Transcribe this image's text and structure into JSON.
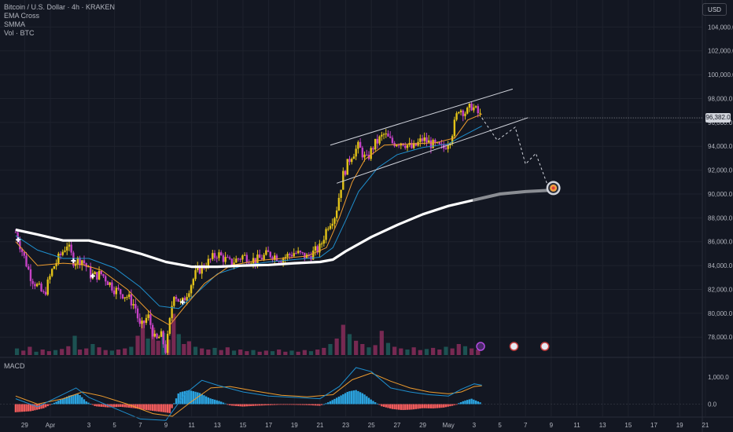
{
  "legend": {
    "symbol": "Bitcoin / U.S. Dollar · 4h · KRAKEN",
    "indicators": [
      "EMA Cross",
      "SMMA",
      "Vol · BTC"
    ]
  },
  "currency_button": "USD",
  "macd": {
    "label": "MACD",
    "ticks": [
      "1,000.0",
      "0.0"
    ],
    "tick_values": [
      1000,
      0
    ]
  },
  "colors": {
    "background": "#131722",
    "up": "#e3c318",
    "down": "#c542c5",
    "ema_fast": "#ef9c2e",
    "ema_slow": "#1f8fce",
    "smma": "#ffffff",
    "hist_pos": "#2ba3df",
    "hist_neg": "#f05b5b",
    "volume_down": "#8a2d5a",
    "volume_up": "#1f5d5a"
  },
  "chart_data": {
    "type": "candlestick",
    "y_range": [
      76500,
      106000
    ],
    "y_ticks": [
      104000,
      102000,
      100000,
      98000,
      96000,
      94000,
      92000,
      90000,
      88000,
      86000,
      84000,
      82000,
      80000,
      78000
    ],
    "y_tick_labels": [
      "104,000.0",
      "102,000.0",
      "100,000.0",
      "98,000.0",
      "96,000.0",
      "94,000.0",
      "92,000.0",
      "90,000.0",
      "88,000.0",
      "86,000.0",
      "84,000.0",
      "82,000.0",
      "80,000.0",
      "78,000.0"
    ],
    "x_ticks": [
      "29",
      "Apr",
      "3",
      "5",
      "7",
      "9",
      "11",
      "13",
      "15",
      "17",
      "19",
      "21",
      "23",
      "25",
      "27",
      "29",
      "May",
      "3",
      "5",
      "7",
      "9",
      "11",
      "13",
      "15",
      "17",
      "19",
      "21"
    ],
    "x_tick_days": [
      -3,
      -1,
      2,
      4,
      6,
      8,
      10,
      12,
      14,
      16,
      18,
      20,
      22,
      24,
      26,
      28,
      30,
      32,
      34,
      36,
      38,
      40,
      42,
      44,
      46,
      48,
      50
    ],
    "last_price": 96382.0,
    "last_price_label": "96,382.0",
    "price_path": [
      [
        -3.7,
        86800
      ],
      [
        -2.5,
        83000
      ],
      [
        -1.5,
        81500
      ],
      [
        -0.8,
        83800
      ],
      [
        0.3,
        85800
      ],
      [
        0.8,
        84400
      ],
      [
        1.5,
        84500
      ],
      [
        2.2,
        83100
      ],
      [
        3.0,
        83300
      ],
      [
        4.0,
        82000
      ],
      [
        5.0,
        81400
      ],
      [
        5.6,
        80600
      ],
      [
        6.0,
        78700
      ],
      [
        6.6,
        79800
      ],
      [
        7.2,
        77600
      ],
      [
        7.6,
        78200
      ],
      [
        8.0,
        76800
      ],
      [
        8.6,
        81800
      ],
      [
        9.2,
        80700
      ],
      [
        9.8,
        82100
      ],
      [
        10.4,
        83500
      ],
      [
        11.0,
        84000
      ],
      [
        12.0,
        85000
      ],
      [
        13.0,
        84200
      ],
      [
        14.0,
        84800
      ],
      [
        15.0,
        84400
      ],
      [
        16.0,
        85000
      ],
      [
        17.0,
        84600
      ],
      [
        18.0,
        85100
      ],
      [
        19.0,
        84700
      ],
      [
        20.0,
        85500
      ],
      [
        20.6,
        87400
      ],
      [
        21.2,
        88300
      ],
      [
        21.8,
        91600
      ],
      [
        22.4,
        93200
      ],
      [
        23.0,
        94000
      ],
      [
        23.6,
        92800
      ],
      [
        24.2,
        94100
      ],
      [
        25.0,
        95000
      ],
      [
        25.6,
        94300
      ],
      [
        26.4,
        94400
      ],
      [
        27.2,
        93800
      ],
      [
        28.0,
        94600
      ],
      [
        28.8,
        94100
      ],
      [
        29.6,
        93800
      ],
      [
        30.2,
        94800
      ],
      [
        30.8,
        97200
      ],
      [
        31.4,
        96800
      ],
      [
        31.8,
        97400
      ],
      [
        32.2,
        96900
      ],
      [
        32.6,
        96382
      ]
    ],
    "smma": [
      [
        -3.7,
        87000
      ],
      [
        -2.0,
        86600
      ],
      [
        0.0,
        86100
      ],
      [
        2.0,
        86100
      ],
      [
        4.0,
        85600
      ],
      [
        6.0,
        85000
      ],
      [
        8.0,
        84300
      ],
      [
        10.0,
        83900
      ],
      [
        12.0,
        83900
      ],
      [
        14.0,
        84000
      ],
      [
        16.0,
        84050
      ],
      [
        18.0,
        84200
      ],
      [
        20.0,
        84300
      ],
      [
        21.0,
        84500
      ],
      [
        22.0,
        85200
      ],
      [
        24.0,
        86400
      ],
      [
        26.0,
        87400
      ],
      [
        28.0,
        88300
      ],
      [
        30.0,
        89000
      ],
      [
        32.0,
        89500
      ]
    ],
    "smma_projection": [
      [
        32.0,
        89500
      ],
      [
        34.0,
        90000
      ],
      [
        36.0,
        90200
      ],
      [
        37.8,
        90300
      ]
    ],
    "ema_fast": [
      [
        -3.7,
        86000
      ],
      [
        -2.0,
        84000
      ],
      [
        0.0,
        84200
      ],
      [
        1.5,
        84100
      ],
      [
        3.0,
        83600
      ],
      [
        5.0,
        82000
      ],
      [
        7.0,
        79800
      ],
      [
        8.3,
        79000
      ],
      [
        9.5,
        80600
      ],
      [
        11.0,
        82500
      ],
      [
        13.0,
        84000
      ],
      [
        15.0,
        84400
      ],
      [
        17.0,
        84600
      ],
      [
        19.0,
        84800
      ],
      [
        20.5,
        85500
      ],
      [
        21.5,
        88000
      ],
      [
        22.5,
        91000
      ],
      [
        23.5,
        92900
      ],
      [
        25.0,
        94100
      ],
      [
        27.0,
        94200
      ],
      [
        29.0,
        94300
      ],
      [
        30.5,
        94700
      ],
      [
        31.5,
        96200
      ],
      [
        32.6,
        96700
      ]
    ],
    "ema_slow": [
      [
        -3.7,
        86500
      ],
      [
        -2.0,
        85300
      ],
      [
        0.0,
        84600
      ],
      [
        2.0,
        84600
      ],
      [
        4.0,
        83800
      ],
      [
        6.0,
        82200
      ],
      [
        7.5,
        80600
      ],
      [
        9.0,
        80400
      ],
      [
        10.5,
        81800
      ],
      [
        12.0,
        83300
      ],
      [
        14.0,
        84000
      ],
      [
        16.0,
        84300
      ],
      [
        18.0,
        84500
      ],
      [
        20.0,
        84700
      ],
      [
        21.0,
        85500
      ],
      [
        22.0,
        87800
      ],
      [
        23.0,
        90200
      ],
      [
        24.5,
        92200
      ],
      [
        26.0,
        93300
      ],
      [
        28.0,
        93900
      ],
      [
        30.0,
        94200
      ],
      [
        31.0,
        94800
      ],
      [
        32.6,
        95700
      ]
    ],
    "channel": {
      "upper": [
        [
          20.8,
          94100
        ],
        [
          35.0,
          98800
        ]
      ],
      "lower": [
        [
          21.3,
          90900
        ],
        [
          36.2,
          96400
        ]
      ]
    },
    "projection_path": [
      [
        32.6,
        96382
      ],
      [
        33.8,
        94500
      ],
      [
        35.2,
        95600
      ],
      [
        36.0,
        92500
      ],
      [
        36.8,
        93400
      ],
      [
        37.8,
        90500
      ]
    ],
    "target_price": 90500,
    "signal_days": [
      -3.5,
      0.8,
      2.3,
      9.3
    ],
    "event_days": [
      32.5,
      35.1,
      37.5
    ],
    "macd_hist": [
      [
        -3.7,
        -300
      ],
      [
        -2.5,
        -260
      ],
      [
        -1.5,
        -150
      ],
      [
        -0.5,
        100
      ],
      [
        0.5,
        320
      ],
      [
        1.2,
        380
      ],
      [
        1.8,
        100
      ],
      [
        2.5,
        -80
      ],
      [
        3.5,
        -120
      ],
      [
        4.5,
        -100
      ],
      [
        5.5,
        -150
      ],
      [
        6.5,
        -220
      ],
      [
        7.5,
        -280
      ],
      [
        8.3,
        -330
      ],
      [
        9.0,
        430
      ],
      [
        9.8,
        520
      ],
      [
        10.6,
        420
      ],
      [
        11.4,
        220
      ],
      [
        12.2,
        110
      ],
      [
        13.0,
        -50
      ],
      [
        14.0,
        -90
      ],
      [
        15.0,
        -60
      ],
      [
        16.0,
        -40
      ],
      [
        17.0,
        -20
      ],
      [
        18.0,
        -25
      ],
      [
        19.0,
        -35
      ],
      [
        20.0,
        -60
      ],
      [
        20.6,
        60
      ],
      [
        21.4,
        260
      ],
      [
        22.2,
        470
      ],
      [
        22.8,
        520
      ],
      [
        23.4,
        380
      ],
      [
        24.0,
        160
      ],
      [
        24.8,
        -80
      ],
      [
        25.6,
        -180
      ],
      [
        26.4,
        -220
      ],
      [
        27.2,
        -200
      ],
      [
        28.0,
        -150
      ],
      [
        28.8,
        -160
      ],
      [
        29.6,
        -130
      ],
      [
        30.4,
        -50
      ],
      [
        31.2,
        120
      ],
      [
        31.8,
        200
      ],
      [
        32.6,
        40
      ]
    ],
    "macd_line": [
      [
        -3.7,
        200
      ],
      [
        -2.0,
        -100
      ],
      [
        -0.5,
        250
      ],
      [
        1.0,
        600
      ],
      [
        2.0,
        250
      ],
      [
        4.0,
        -150
      ],
      [
        6.0,
        -550
      ],
      [
        8.0,
        -600
      ],
      [
        9.5,
        380
      ],
      [
        10.8,
        880
      ],
      [
        12.0,
        700
      ],
      [
        14.0,
        450
      ],
      [
        16.0,
        300
      ],
      [
        18.0,
        250
      ],
      [
        20.0,
        200
      ],
      [
        21.5,
        650
      ],
      [
        22.8,
        1350
      ],
      [
        24.0,
        1200
      ],
      [
        25.5,
        600
      ],
      [
        27.0,
        450
      ],
      [
        28.5,
        350
      ],
      [
        30.0,
        300
      ],
      [
        31.0,
        550
      ],
      [
        32.0,
        750
      ],
      [
        32.6,
        700
      ]
    ],
    "macd_signal": [
      [
        -3.7,
        300
      ],
      [
        -2.0,
        0
      ],
      [
        0.0,
        200
      ],
      [
        1.5,
        450
      ],
      [
        3.0,
        300
      ],
      [
        5.0,
        0
      ],
      [
        7.0,
        -350
      ],
      [
        8.5,
        -450
      ],
      [
        10.0,
        100
      ],
      [
        11.5,
        600
      ],
      [
        13.0,
        650
      ],
      [
        15.0,
        480
      ],
      [
        17.0,
        330
      ],
      [
        19.0,
        270
      ],
      [
        21.0,
        350
      ],
      [
        22.5,
        900
      ],
      [
        24.0,
        1150
      ],
      [
        25.5,
        850
      ],
      [
        27.0,
        600
      ],
      [
        28.5,
        450
      ],
      [
        30.0,
        380
      ],
      [
        31.0,
        450
      ],
      [
        32.0,
        650
      ],
      [
        32.6,
        680
      ]
    ],
    "macd_range": [
      -450,
      1700
    ],
    "volume": [
      [
        -3.6,
        0.12
      ],
      [
        -3.1,
        0.08
      ],
      [
        -2.6,
        0.15
      ],
      [
        -2.1,
        0.06
      ],
      [
        -1.6,
        0.1
      ],
      [
        -1.1,
        0.07
      ],
      [
        -0.6,
        0.09
      ],
      [
        -0.1,
        0.11
      ],
      [
        0.4,
        0.16
      ],
      [
        0.9,
        0.35
      ],
      [
        1.3,
        0.1
      ],
      [
        1.8,
        0.12
      ],
      [
        2.3,
        0.2
      ],
      [
        2.8,
        0.14
      ],
      [
        3.3,
        0.09
      ],
      [
        3.8,
        0.08
      ],
      [
        4.3,
        0.1
      ],
      [
        4.8,
        0.12
      ],
      [
        5.3,
        0.15
      ],
      [
        5.8,
        0.35
      ],
      [
        6.2,
        0.62
      ],
      [
        6.6,
        0.3
      ],
      [
        7.0,
        0.5
      ],
      [
        7.4,
        0.26
      ],
      [
        7.8,
        0.4
      ],
      [
        8.2,
        0.28
      ],
      [
        8.6,
        0.75
      ],
      [
        9.0,
        0.38
      ],
      [
        9.4,
        0.2
      ],
      [
        9.8,
        0.25
      ],
      [
        10.3,
        0.15
      ],
      [
        10.8,
        0.12
      ],
      [
        11.3,
        0.1
      ],
      [
        11.8,
        0.13
      ],
      [
        12.3,
        0.09
      ],
      [
        12.8,
        0.14
      ],
      [
        13.3,
        0.08
      ],
      [
        13.8,
        0.1
      ],
      [
        14.3,
        0.07
      ],
      [
        14.8,
        0.09
      ],
      [
        15.3,
        0.06
      ],
      [
        15.8,
        0.08
      ],
      [
        16.3,
        0.07
      ],
      [
        16.8,
        0.1
      ],
      [
        17.3,
        0.06
      ],
      [
        17.8,
        0.08
      ],
      [
        18.3,
        0.06
      ],
      [
        18.8,
        0.09
      ],
      [
        19.3,
        0.07
      ],
      [
        19.8,
        0.1
      ],
      [
        20.3,
        0.13
      ],
      [
        20.8,
        0.2
      ],
      [
        21.3,
        0.3
      ],
      [
        21.8,
        0.55
      ],
      [
        22.3,
        0.38
      ],
      [
        22.8,
        0.26
      ],
      [
        23.3,
        0.2
      ],
      [
        23.8,
        0.14
      ],
      [
        24.3,
        0.18
      ],
      [
        24.8,
        0.44
      ],
      [
        25.3,
        0.22
      ],
      [
        25.8,
        0.15
      ],
      [
        26.3,
        0.12
      ],
      [
        26.8,
        0.1
      ],
      [
        27.3,
        0.14
      ],
      [
        27.8,
        0.09
      ],
      [
        28.3,
        0.11
      ],
      [
        28.8,
        0.13
      ],
      [
        29.3,
        0.1
      ],
      [
        29.8,
        0.15
      ],
      [
        30.3,
        0.12
      ],
      [
        30.8,
        0.2
      ],
      [
        31.3,
        0.16
      ],
      [
        31.8,
        0.12
      ],
      [
        32.3,
        0.1
      ]
    ]
  }
}
